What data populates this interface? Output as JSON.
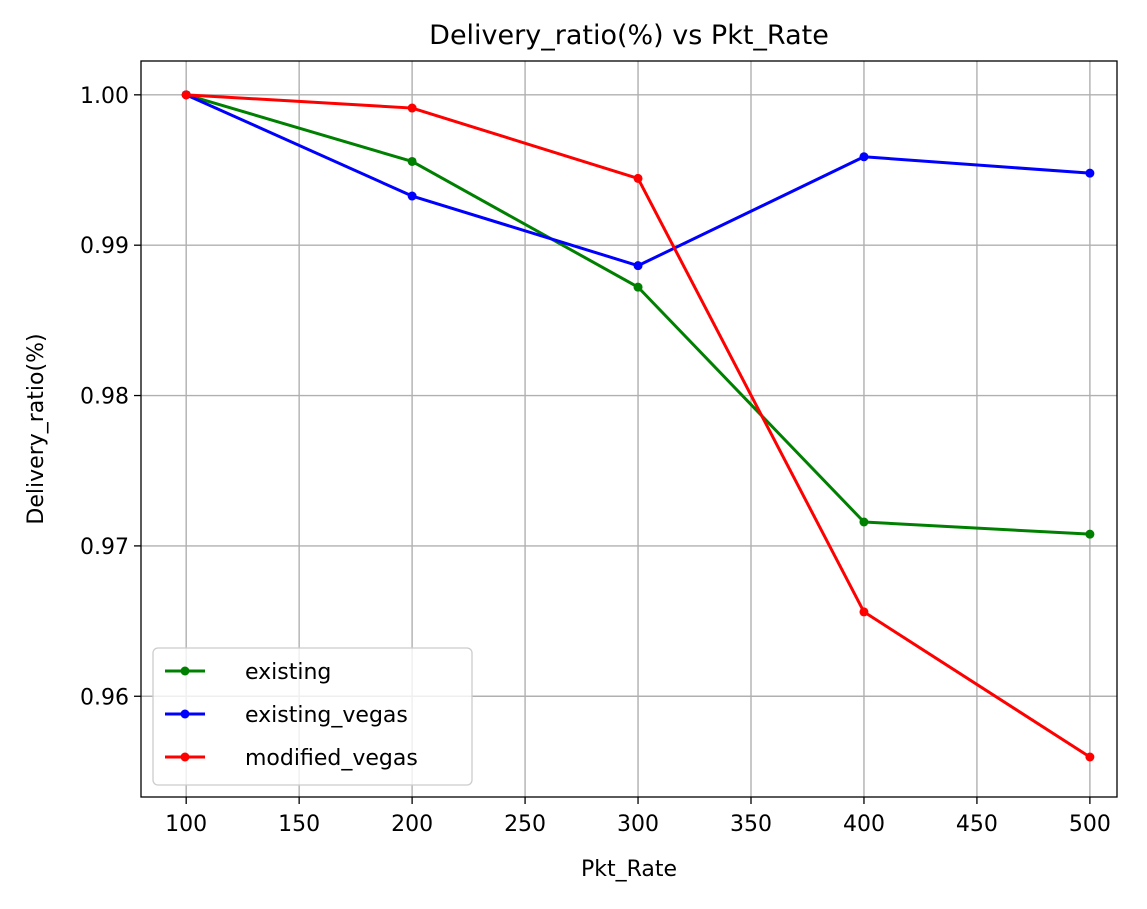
{
  "chart_data": {
    "type": "line",
    "title": "Delivery_ratio(%) vs Pkt_Rate",
    "xlabel": "Pkt_Rate",
    "ylabel": "Delivery_ratio(%)",
    "x": [
      100,
      200,
      300,
      400,
      500
    ],
    "series": [
      {
        "name": "existing",
        "color": "#008000",
        "values": [
          1.0,
          0.99557,
          0.98721,
          0.97159,
          0.97078
        ]
      },
      {
        "name": "existing_vegas",
        "color": "#0000ff",
        "values": [
          1.0,
          0.99327,
          0.98864,
          0.99588,
          0.99479
        ]
      },
      {
        "name": "modified_vegas",
        "color": "#ff0000",
        "values": [
          1.0,
          0.99912,
          0.99444,
          0.96561,
          0.95596
        ]
      }
    ],
    "xlim": [
      80,
      512
    ],
    "ylim": [
      0.9533,
      1.00225
    ],
    "xticks": [
      100,
      150,
      200,
      250,
      300,
      350,
      400,
      450,
      500
    ],
    "xtick_labels": [
      "100",
      "150",
      "200",
      "250",
      "300",
      "350",
      "400",
      "450",
      "500"
    ],
    "yticks": [
      0.96,
      0.97,
      0.98,
      0.99,
      1.0
    ],
    "ytick_labels": [
      "0.96",
      "0.97",
      "0.98",
      "0.99",
      "1.00"
    ],
    "grid": true,
    "legend_position": "lower-left",
    "marker": "circle"
  }
}
